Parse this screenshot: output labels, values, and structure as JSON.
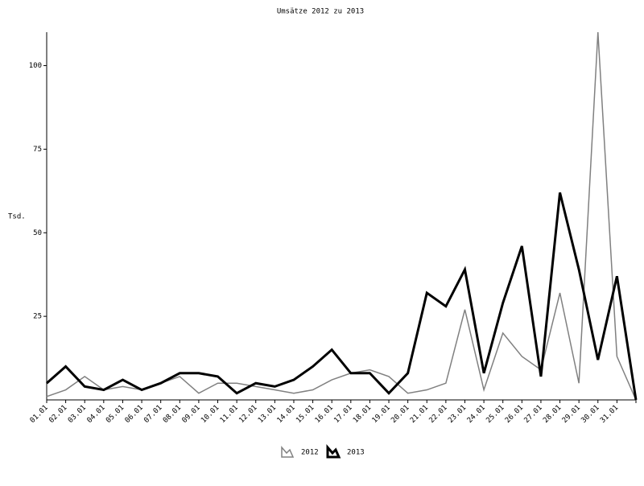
{
  "chart_data": {
    "type": "line",
    "title": "Umsätze 2012 zu 2013",
    "y_label": "Tsd.",
    "categories": [
      "01.01",
      "02.01",
      "03.01",
      "04.01",
      "05.01",
      "06.01",
      "07.01",
      "08.01",
      "09.01",
      "10.01",
      "11.01",
      "12.01",
      "13.01",
      "14.01",
      "15.01",
      "16.01",
      "17.01",
      "18.01",
      "19.01",
      "20.01",
      "21.01",
      "22.01",
      "23.01",
      "24.01",
      "25.01",
      "26.01",
      "27.01",
      "28.01",
      "29.01",
      "30.01",
      "31.01",
      null
    ],
    "series": [
      {
        "name": "2012",
        "color": "#808080",
        "width": 1.5,
        "values": [
          1,
          3,
          7,
          3,
          4,
          3,
          5,
          7,
          2,
          5,
          5,
          4,
          3,
          2,
          3,
          6,
          8,
          9,
          7,
          2,
          3,
          5,
          27,
          3,
          20,
          13,
          9,
          32,
          5,
          110,
          13,
          0
        ]
      },
      {
        "name": "2013",
        "color": "#000000",
        "width": 3,
        "values": [
          5,
          10,
          4,
          3,
          6,
          3,
          5,
          8,
          8,
          7,
          2,
          5,
          4,
          6,
          10,
          15,
          8,
          8,
          2,
          8,
          32,
          28,
          39,
          8,
          29,
          46,
          7,
          62,
          39,
          12,
          37,
          0
        ]
      }
    ],
    "ylim": [
      0,
      110
    ],
    "yticks": [
      25,
      50,
      75,
      100
    ],
    "legend": "bottom"
  }
}
